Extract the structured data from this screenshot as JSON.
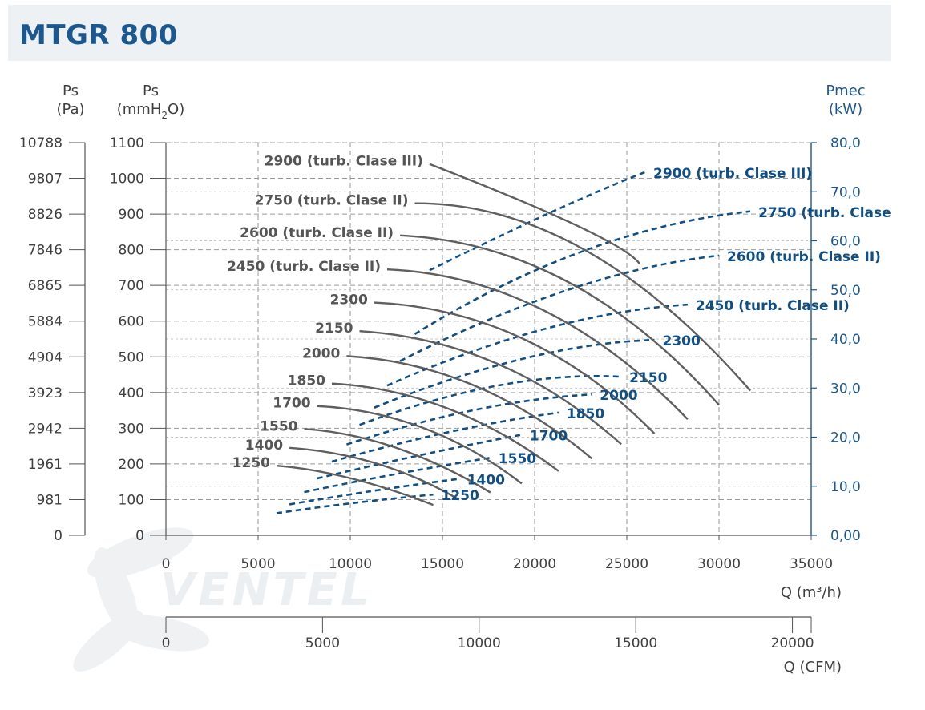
{
  "header": {
    "title": "MTGR 800"
  },
  "chart_data": {
    "type": "line",
    "title": "MTGR 800",
    "x_axis": {
      "label": "Q (m³/h)",
      "range": [
        0,
        35000
      ],
      "ticks": [
        "0",
        "5000",
        "10000",
        "15000",
        "20000",
        "25000",
        "30000",
        "35000"
      ]
    },
    "x2_axis": {
      "label": "Q (CFM)",
      "range": [
        0,
        20600
      ],
      "ticks": [
        "0",
        "5000",
        "10000",
        "15000",
        "20000"
      ],
      "tick_values": [
        0,
        5000,
        10000,
        15000,
        20000
      ]
    },
    "y_axis_left_pa": {
      "label_line1": "Ps",
      "label_line2": "(Pa)",
      "ticks": [
        "0",
        "981",
        "1961",
        "2942",
        "3923",
        "4904",
        "5884",
        "6865",
        "7846",
        "8826",
        "9807",
        "10788"
      ]
    },
    "y_axis_mmh2o": {
      "label_line1": "Ps",
      "label_line2_pre": "(mmH",
      "label_line2_sub": "2",
      "label_line2_post": "O)",
      "range": [
        0,
        1100
      ],
      "ticks": [
        "0",
        "100",
        "200",
        "300",
        "400",
        "500",
        "600",
        "700",
        "800",
        "900",
        "1000",
        "1100"
      ]
    },
    "y_axis_right_kw": {
      "label_line1": "Pmec",
      "label_line2": "(kW)",
      "range": [
        0,
        80
      ],
      "ticks": [
        "0,00",
        "10,0",
        "20,0",
        "30,0",
        "40,0",
        "50,0",
        "60,0",
        "70,0",
        "80,0"
      ]
    },
    "pressure_curves": [
      {
        "name": "1250",
        "x": [
          6000,
          10000,
          14500
        ],
        "y": [
          195,
          160,
          85
        ]
      },
      {
        "name": "1400",
        "x": [
          6700,
          11500,
          15900
        ],
        "y": [
          245,
          200,
          100
        ]
      },
      {
        "name": "1550",
        "x": [
          7500,
          12500,
          17600
        ],
        "y": [
          298,
          245,
          120
        ]
      },
      {
        "name": "1700",
        "x": [
          8200,
          14000,
          19300
        ],
        "y": [
          362,
          300,
          145
        ]
      },
      {
        "name": "1850",
        "x": [
          9000,
          15300,
          21300
        ],
        "y": [
          425,
          355,
          180
        ]
      },
      {
        "name": "2000",
        "x": [
          9800,
          16700,
          23100
        ],
        "y": [
          502,
          420,
          215
        ]
      },
      {
        "name": "2150",
        "x": [
          10500,
          18000,
          24700
        ],
        "y": [
          572,
          480,
          255
        ]
      },
      {
        "name": "2300",
        "x": [
          11300,
          19400,
          26500
        ],
        "y": [
          652,
          550,
          285
        ]
      },
      {
        "name": "2450 (turb. Clase II)",
        "x": [
          12000,
          20500,
          28300
        ],
        "y": [
          745,
          630,
          325
        ]
      },
      {
        "name": "2600 (turb. Clase II)",
        "x": [
          12700,
          21800,
          30000
        ],
        "y": [
          840,
          710,
          365
        ]
      },
      {
        "name": "2750 (turb. Clase II)",
        "x": [
          13500,
          22700,
          31700
        ],
        "y": [
          930,
          800,
          405
        ]
      },
      {
        "name": "2900 (turb. Clase III)",
        "x": [
          14300,
          22400,
          25700
        ],
        "y": [
          1040,
          865,
          760
        ]
      }
    ],
    "power_curves": [
      {
        "name": "1250",
        "x": [
          6000,
          10000,
          14500
        ],
        "y": [
          4.5,
          6.5,
          8.3
        ]
      },
      {
        "name": "1400",
        "x": [
          6700,
          11500,
          15900
        ],
        "y": [
          6.3,
          9.2,
          11.5
        ]
      },
      {
        "name": "1550",
        "x": [
          7500,
          12500,
          17600
        ],
        "y": [
          8.8,
          12.5,
          15.8
        ]
      },
      {
        "name": "1700",
        "x": [
          8200,
          14000,
          19300
        ],
        "y": [
          11.6,
          16.5,
          20.5
        ]
      },
      {
        "name": "1850",
        "x": [
          9000,
          15300,
          21300
        ],
        "y": [
          15.0,
          21.0,
          25.0
        ]
      },
      {
        "name": "2000",
        "x": [
          9800,
          16700,
          23100
        ],
        "y": [
          18.5,
          25.5,
          28.7
        ]
      },
      {
        "name": "2150",
        "x": [
          10500,
          18000,
          24700
        ],
        "y": [
          22.5,
          30.5,
          32.3
        ]
      },
      {
        "name": "2300",
        "x": [
          11300,
          19400,
          26500
        ],
        "y": [
          26.0,
          36.0,
          39.8
        ]
      },
      {
        "name": "2450 (turb. Clase II)",
        "x": [
          12000,
          20500,
          28300
        ],
        "y": [
          30.5,
          42.0,
          47.0
        ]
      },
      {
        "name": "2600 (turb. Clase II)",
        "x": [
          12700,
          21800,
          30000
        ],
        "y": [
          35.5,
          50.0,
          57.0
        ]
      },
      {
        "name": "2750 (turb. Clase II)",
        "x": [
          13500,
          22700,
          31700
        ],
        "y": [
          41.0,
          58.0,
          66.0
        ]
      },
      {
        "name": "2900 (turb. Clase III)",
        "x": [
          14300,
          21000,
          26000
        ],
        "y": [
          54.0,
          66.0,
          74.0
        ]
      }
    ],
    "pressure_labels": [
      "1250",
      "1400",
      "1550",
      "1700",
      "1850",
      "2000",
      "2150",
      "2300",
      "2450 (turb. Clase II)",
      "2600 (turb. Clase II)",
      "2750 (turb. Clase II)",
      "2900 (turb. Clase III)"
    ],
    "power_labels": [
      "1250",
      "1400",
      "1550",
      "1700",
      "1850",
      "2000",
      "2150",
      "2300",
      "2450 (turb. Clase II)",
      "2600 (turb. Clase II)",
      "2750 (turb. Clase",
      "2900 (turb. Clase III)"
    ],
    "grid": true,
    "colors": {
      "pressure": "#5f5f5f",
      "power": "#0f4f85",
      "grid": "#9a9a9a",
      "axis_blue": "#1b5890"
    }
  },
  "watermark": {
    "logo_text": "VENTEL",
    "icon": "fan-icon"
  }
}
